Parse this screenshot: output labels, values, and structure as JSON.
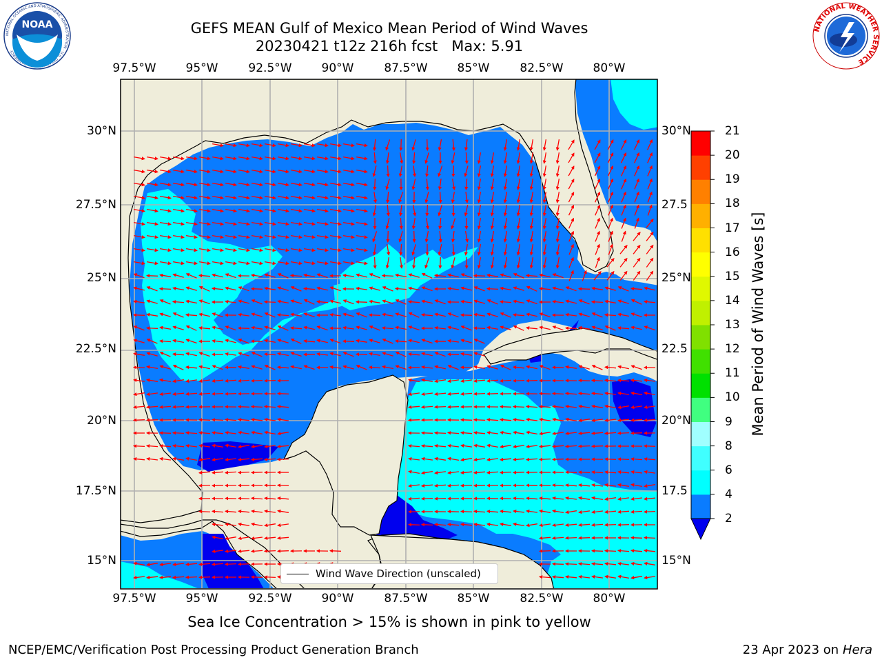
{
  "title": {
    "line1": "GEFS MEAN Gulf of Mexico Mean Period of Wind Waves",
    "line2": "20230421 t12z 216h fcst   Max: 5.91"
  },
  "map": {
    "lon_labels": [
      "97.5°W",
      "95°W",
      "92.5°W",
      "90°W",
      "87.5°W",
      "85°W",
      "82.5°W",
      "80°W"
    ],
    "lat_labels_left": [
      "30°N",
      "27.5°N",
      "25°N",
      "22.5°N",
      "20°N",
      "17.5°N",
      "15°N"
    ],
    "lat_labels_right": [
      "30°N",
      "27.5",
      "25°N",
      "22.5",
      "20°N",
      "17.5",
      "15°N"
    ],
    "extent": {
      "lon_min": -98.0,
      "lon_max": -78.2,
      "lat_min": 14.0,
      "lat_max": 31.8
    },
    "colors": {
      "land": "#efedda",
      "ocean_2_4": "#0a7cff",
      "ocean_4_6": "#00ffff",
      "ocean_lt2": "#0000ee",
      "arrows": "#ff0000",
      "grid": "#b0b0b0"
    }
  },
  "legend": {
    "label": "Wind Wave Direction (unscaled)"
  },
  "colorbar": {
    "label": "Mean Period of Wind Waves [s]",
    "ticks": [
      "2",
      "4",
      "6",
      "8",
      "9",
      "10",
      "11",
      "12",
      "13",
      "14",
      "15",
      "16",
      "17",
      "18",
      "19",
      "20",
      "21"
    ],
    "colors": [
      "#0a7cff",
      "#00ffff",
      "#40ffff",
      "#a0ffff",
      "#40ff80",
      "#00e000",
      "#40e000",
      "#80e000",
      "#c0f000",
      "#e0f800",
      "#ffff00",
      "#ffe000",
      "#ffb000",
      "#ff8000",
      "#ff4000",
      "#ff0000"
    ],
    "under_color": "#0000ee"
  },
  "notes": {
    "sea_ice": "Sea Ice Concentration > 15% is shown in pink to yellow"
  },
  "footer": {
    "left": "NCEP/EMC/Verification Post Processing Product Generation Branch",
    "right_prefix": "23 Apr 2023 on ",
    "right_host": "Hera"
  },
  "logos": {
    "noaa": "NOAA",
    "noaa_ring": "NATIONAL OCEANIC AND ATMOSPHERIC ADMINISTRATION · U.S. DEPARTMENT OF COMMERCE",
    "nws_ring": "NATIONAL WEATHER SERVICE"
  }
}
